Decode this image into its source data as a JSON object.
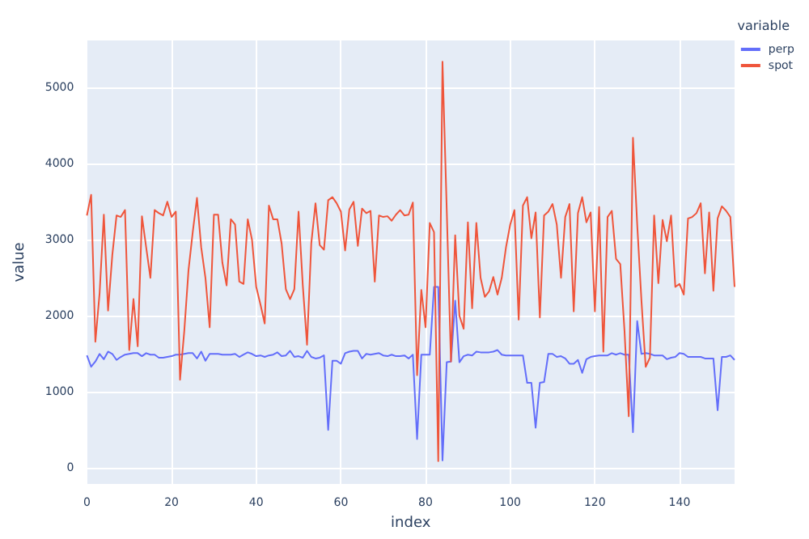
{
  "chart_data": {
    "type": "line",
    "xlabel": "index",
    "ylabel": "value",
    "legend_title": "variable",
    "legend": "top right",
    "x": [
      0,
      1,
      2,
      3,
      4,
      5,
      6,
      7,
      8,
      9,
      10,
      11,
      12,
      13,
      14,
      15,
      16,
      17,
      18,
      19,
      20,
      21,
      22,
      23,
      24,
      25,
      26,
      27,
      28,
      29,
      30,
      31,
      32,
      33,
      34,
      35,
      36,
      37,
      38,
      39,
      40,
      41,
      42,
      43,
      44,
      45,
      46,
      47,
      48,
      49,
      50,
      51,
      52,
      53,
      54,
      55,
      56,
      57,
      58,
      59,
      60,
      61,
      62,
      63,
      64,
      65,
      66,
      67,
      68,
      69,
      70,
      71,
      72,
      73,
      74,
      75,
      76,
      77,
      78,
      79,
      80,
      81,
      82,
      83,
      84,
      85,
      86,
      87,
      88,
      89,
      90,
      91,
      92,
      93,
      94,
      95,
      96,
      97,
      98,
      99,
      100,
      101,
      102,
      103,
      104,
      105,
      106,
      107,
      108,
      109,
      110,
      111,
      112,
      113,
      114,
      115,
      116,
      117,
      118,
      119,
      120,
      121,
      122,
      123,
      124,
      125,
      126,
      127,
      128,
      129,
      130,
      131,
      132,
      133,
      134,
      135,
      136,
      137,
      138,
      139,
      140,
      141,
      142,
      143,
      144,
      145,
      146,
      147,
      148,
      149,
      150,
      151,
      152,
      153
    ],
    "grid": true,
    "xlim": [
      0,
      153
    ],
    "xticks": [
      0,
      20,
      40,
      60,
      80,
      100,
      120,
      140
    ],
    "ylim": [
      -210,
      5620
    ],
    "yticks": [
      0,
      1000,
      2000,
      3000,
      4000,
      5000
    ],
    "series": [
      {
        "name": "perp",
        "color": "#636efa",
        "values": [
          1480,
          1330,
          1400,
          1500,
          1430,
          1530,
          1500,
          1420,
          1460,
          1490,
          1500,
          1510,
          1510,
          1470,
          1510,
          1490,
          1490,
          1450,
          1450,
          1460,
          1470,
          1490,
          1490,
          1500,
          1510,
          1510,
          1440,
          1530,
          1410,
          1500,
          1500,
          1500,
          1490,
          1490,
          1490,
          1500,
          1460,
          1490,
          1520,
          1500,
          1470,
          1480,
          1460,
          1480,
          1490,
          1520,
          1470,
          1480,
          1540,
          1460,
          1470,
          1450,
          1540,
          1460,
          1440,
          1450,
          1480,
          500,
          1410,
          1410,
          1370,
          1510,
          1530,
          1540,
          1540,
          1440,
          1500,
          1490,
          1500,
          1510,
          1480,
          1470,
          1490,
          1470,
          1470,
          1480,
          1440,
          1490,
          380,
          1490,
          1490,
          1490,
          2380,
          2380,
          100,
          1390,
          1400,
          2200,
          1390,
          1470,
          1490,
          1480,
          1530,
          1520,
          1520,
          1520,
          1530,
          1550,
          1490,
          1480,
          1480,
          1480,
          1480,
          1480,
          1120,
          1120,
          530,
          1120,
          1130,
          1500,
          1500,
          1460,
          1470,
          1440,
          1370,
          1370,
          1420,
          1250,
          1430,
          1460,
          1470,
          1480,
          1480,
          1480,
          1510,
          1490,
          1510,
          1490,
          1490,
          470,
          1930,
          1500,
          1510,
          1500,
          1480,
          1480,
          1480,
          1430,
          1450,
          1460,
          1510,
          1500,
          1460,
          1460,
          1460,
          1460,
          1440,
          1440,
          1440,
          760,
          1460,
          1460,
          1480,
          1420
        ]
      },
      {
        "name": "spot",
        "color": "#ef553b",
        "values": [
          3320,
          3590,
          1660,
          2300,
          3330,
          2070,
          2800,
          3320,
          3300,
          3390,
          1550,
          2220,
          1600,
          3310,
          2900,
          2500,
          3390,
          3350,
          3320,
          3500,
          3300,
          3370,
          1160,
          1800,
          2600,
          3100,
          3550,
          2900,
          2500,
          1850,
          3330,
          3330,
          2700,
          2400,
          3270,
          3200,
          2450,
          2420,
          3270,
          3000,
          2380,
          2150,
          1900,
          3450,
          3270,
          3270,
          2950,
          2350,
          2220,
          2350,
          3370,
          2400,
          1620,
          2950,
          3480,
          2930,
          2870,
          3520,
          3560,
          3480,
          3370,
          2860,
          3400,
          3500,
          2920,
          3410,
          3350,
          3380,
          2450,
          3320,
          3300,
          3310,
          3250,
          3330,
          3390,
          3320,
          3330,
          3490,
          1220,
          2340,
          1850,
          3220,
          3100,
          90,
          5340,
          3400,
          1400,
          3060,
          2000,
          1830,
          3230,
          2100,
          3220,
          2500,
          2250,
          2320,
          2510,
          2280,
          2500,
          2900,
          3200,
          3390,
          1950,
          3450,
          3560,
          3020,
          3360,
          1980,
          3320,
          3370,
          3470,
          3200,
          2500,
          3300,
          3470,
          2060,
          3350,
          3560,
          3230,
          3360,
          2060,
          3430,
          1530,
          3300,
          3380,
          2750,
          2680,
          1800,
          680,
          4340,
          3200,
          2200,
          1330,
          1450,
          3320,
          2430,
          3260,
          2980,
          3320,
          2380,
          2420,
          2280,
          3280,
          3300,
          3350,
          3480,
          2560,
          3360,
          2330,
          3280,
          3440,
          3380,
          3300,
          2380
        ]
      }
    ]
  }
}
